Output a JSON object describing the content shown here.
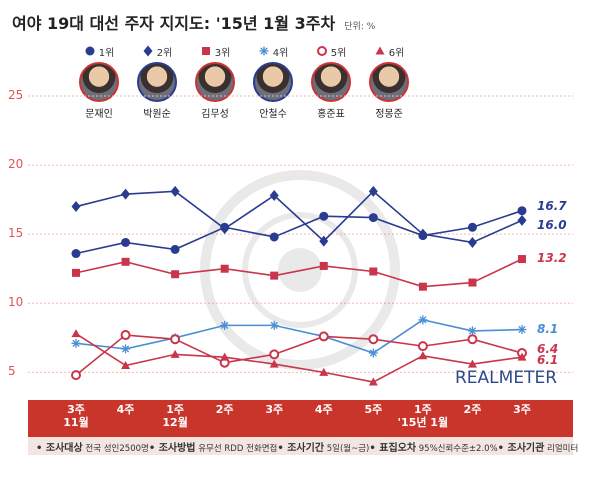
{
  "title": "여야 19대 대선 주자 지지도: '15년 1월 3주차",
  "unit_label": "단위: %",
  "brand": "REALMETER",
  "candidates": [
    {
      "rank": "1위",
      "name": "문재인",
      "color": "#2a3c8f",
      "marker": "circle"
    },
    {
      "rank": "2위",
      "name": "박원순",
      "color": "#2a3c8f",
      "marker": "diamond"
    },
    {
      "rank": "3위",
      "name": "김무성",
      "color": "#c9354a",
      "marker": "square"
    },
    {
      "rank": "4위",
      "name": "안철수",
      "color": "#4a8fd6",
      "marker": "asterisk"
    },
    {
      "rank": "5위",
      "name": "홍준표",
      "color": "#c9354a",
      "marker": "open-circle"
    },
    {
      "rank": "6위",
      "name": "정몽준",
      "color": "#c9354a",
      "marker": "triangle"
    }
  ],
  "footer": [
    {
      "key": "조사대상",
      "value": "전국 성인2500명"
    },
    {
      "key": "조사방법",
      "value": "유무선 RDD 전화면접"
    },
    {
      "key": "조사기간",
      "value": "5일(월~금)"
    },
    {
      "key": "표집오차",
      "value": "95%신뢰수준±2.0%"
    },
    {
      "key": "조사기관",
      "value": "리얼미터"
    }
  ],
  "chart_data": {
    "type": "line",
    "categories": [
      "3주\n11월",
      "4주",
      "1주\n12월",
      "2주",
      "3주",
      "4주",
      "5주",
      "1주\n'15년 1월",
      "2주",
      "3주"
    ],
    "ylim": [
      3,
      25
    ],
    "yticks": [
      "25",
      "20",
      "15",
      "10",
      "5"
    ],
    "series": [
      {
        "name": "문재인",
        "color": "#2a3c8f",
        "marker": "circle",
        "values": [
          13.6,
          14.4,
          13.9,
          15.5,
          14.8,
          16.3,
          16.2,
          14.9,
          15.5,
          16.7
        ],
        "last_label": "16.7"
      },
      {
        "name": "박원순",
        "color": "#2a3c8f",
        "marker": "diamond",
        "values": [
          17.0,
          17.9,
          18.1,
          15.4,
          17.8,
          14.5,
          18.1,
          15.0,
          14.4,
          16.0
        ],
        "last_label": "16.0"
      },
      {
        "name": "김무성",
        "color": "#c9354a",
        "marker": "square",
        "values": [
          12.2,
          13.0,
          12.1,
          12.5,
          12.0,
          12.7,
          12.3,
          11.2,
          11.5,
          13.2
        ],
        "last_label": "13.2"
      },
      {
        "name": "안철수",
        "color": "#4a8fd6",
        "marker": "asterisk",
        "values": [
          7.1,
          6.7,
          7.5,
          8.4,
          8.4,
          7.6,
          6.4,
          8.8,
          8.0,
          8.1
        ],
        "last_label": "8.1"
      },
      {
        "name": "홍준표",
        "color": "#c9354a",
        "marker": "open-circle",
        "values": [
          4.8,
          7.7,
          7.4,
          5.7,
          6.3,
          7.6,
          7.4,
          6.9,
          7.4,
          6.4
        ],
        "last_label": "6.4"
      },
      {
        "name": "정몽준",
        "color": "#c9354a",
        "marker": "triangle",
        "values": [
          7.8,
          5.5,
          6.3,
          6.1,
          5.6,
          5.0,
          4.3,
          6.2,
          5.6,
          6.1
        ],
        "last_label": "6.1"
      }
    ]
  }
}
